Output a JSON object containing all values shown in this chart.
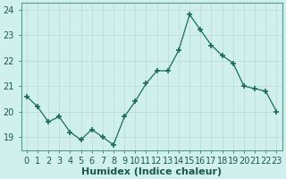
{
  "x": [
    0,
    1,
    2,
    3,
    4,
    5,
    6,
    7,
    8,
    9,
    10,
    11,
    12,
    13,
    14,
    15,
    16,
    17,
    18,
    19,
    20,
    21,
    22,
    23
  ],
  "y": [
    20.6,
    20.2,
    19.6,
    19.8,
    19.2,
    18.9,
    19.3,
    19.0,
    18.7,
    19.8,
    20.4,
    21.1,
    21.6,
    21.6,
    22.4,
    23.8,
    23.2,
    22.6,
    22.2,
    21.9,
    21.0,
    20.9,
    20.8,
    20.0
  ],
  "xlabel": "Humidex (Indice chaleur)",
  "ylim": [
    18.5,
    24.25
  ],
  "yticks": [
    19,
    20,
    21,
    22,
    23,
    24
  ],
  "bg_color": "#d0f0ee",
  "line_color": "#1a6b5a",
  "marker_color": "#1a6b5a",
  "grid_color": "#c0dcd8",
  "xlabel_fontsize": 8,
  "tick_fontsize": 7
}
